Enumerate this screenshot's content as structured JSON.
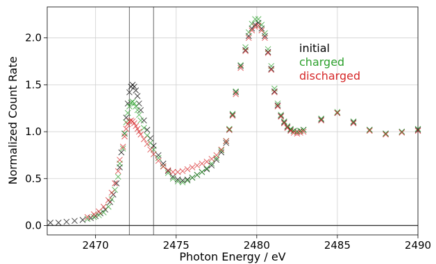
{
  "chart_data": {
    "type": "scatter",
    "title": "",
    "xlabel": "Photon Energy / eV",
    "ylabel": "Normalized Count Rate",
    "xlim": [
      2467,
      2490
    ],
    "ylim": [
      -0.1,
      2.33
    ],
    "xticks": [
      2470,
      2475,
      2480,
      2485,
      2490
    ],
    "yticks": [
      0.0,
      0.5,
      1.0,
      1.5,
      2.0
    ],
    "ytick_labels": [
      "0.0",
      "0.5",
      "1.0",
      "1.5",
      "2.0"
    ],
    "grid": true,
    "marker": "x",
    "legend_position": "upper-right",
    "reference_lines": [
      {
        "orientation": "vertical",
        "x": 2472.1,
        "color": "#808080"
      },
      {
        "orientation": "vertical",
        "x": 2473.6,
        "color": "#808080"
      },
      {
        "orientation": "horizontal",
        "y": 0.0,
        "color": "#333333"
      }
    ],
    "series": [
      {
        "name": "initial",
        "color": "#000000",
        "points": [
          [
            2467.2,
            0.03
          ],
          [
            2467.7,
            0.03
          ],
          [
            2468.2,
            0.04
          ],
          [
            2468.7,
            0.05
          ],
          [
            2469.2,
            0.06
          ],
          [
            2469.7,
            0.08
          ],
          [
            2470.0,
            0.1
          ],
          [
            2470.3,
            0.13
          ],
          [
            2470.6,
            0.17
          ],
          [
            2470.9,
            0.25
          ],
          [
            2471.1,
            0.33
          ],
          [
            2471.3,
            0.45
          ],
          [
            2471.5,
            0.62
          ],
          [
            2471.6,
            0.78
          ],
          [
            2471.8,
            0.98
          ],
          [
            2471.9,
            1.15
          ],
          [
            2472.0,
            1.3
          ],
          [
            2472.1,
            1.42
          ],
          [
            2472.2,
            1.48
          ],
          [
            2472.3,
            1.5
          ],
          [
            2472.4,
            1.48
          ],
          [
            2472.5,
            1.44
          ],
          [
            2472.6,
            1.38
          ],
          [
            2472.7,
            1.3
          ],
          [
            2472.8,
            1.23
          ],
          [
            2473.0,
            1.12
          ],
          [
            2473.2,
            1.02
          ],
          [
            2473.4,
            0.93
          ],
          [
            2473.6,
            0.85
          ],
          [
            2473.9,
            0.75
          ],
          [
            2474.2,
            0.66
          ],
          [
            2474.5,
            0.58
          ],
          [
            2474.8,
            0.52
          ],
          [
            2475.1,
            0.49
          ],
          [
            2475.4,
            0.48
          ],
          [
            2475.7,
            0.49
          ],
          [
            2476.0,
            0.51
          ],
          [
            2476.3,
            0.54
          ],
          [
            2476.6,
            0.57
          ],
          [
            2476.9,
            0.6
          ],
          [
            2477.2,
            0.64
          ],
          [
            2477.5,
            0.7
          ],
          [
            2477.8,
            0.78
          ],
          [
            2478.1,
            0.88
          ],
          [
            2478.3,
            1.02
          ],
          [
            2478.5,
            1.18
          ],
          [
            2478.7,
            1.42
          ],
          [
            2479.0,
            1.7
          ],
          [
            2479.3,
            1.87
          ],
          [
            2479.5,
            2.02
          ],
          [
            2479.7,
            2.1
          ],
          [
            2479.9,
            2.14
          ],
          [
            2480.1,
            2.16
          ],
          [
            2480.3,
            2.1
          ],
          [
            2480.5,
            2.02
          ],
          [
            2480.7,
            1.85
          ],
          [
            2480.9,
            1.67
          ],
          [
            2481.1,
            1.43
          ],
          [
            2481.3,
            1.28
          ],
          [
            2481.5,
            1.17
          ],
          [
            2481.7,
            1.1
          ],
          [
            2481.9,
            1.05
          ],
          [
            2482.1,
            1.02
          ],
          [
            2482.3,
            1.01
          ],
          [
            2482.5,
            1.0
          ],
          [
            2482.7,
            1.01
          ],
          [
            2482.9,
            1.02
          ],
          [
            2484.0,
            1.13
          ],
          [
            2485.0,
            1.2
          ],
          [
            2486.0,
            1.1
          ],
          [
            2487.0,
            1.02
          ],
          [
            2488.0,
            0.98
          ],
          [
            2489.0,
            1.0
          ],
          [
            2490.0,
            1.02
          ]
        ]
      },
      {
        "name": "charged",
        "color": "#2ca02c",
        "points": [
          [
            2469.5,
            0.07
          ],
          [
            2469.9,
            0.09
          ],
          [
            2470.2,
            0.11
          ],
          [
            2470.5,
            0.14
          ],
          [
            2470.8,
            0.2
          ],
          [
            2471.0,
            0.28
          ],
          [
            2471.2,
            0.38
          ],
          [
            2471.4,
            0.52
          ],
          [
            2471.5,
            0.66
          ],
          [
            2471.7,
            0.82
          ],
          [
            2471.8,
            0.98
          ],
          [
            2471.9,
            1.1
          ],
          [
            2472.0,
            1.2
          ],
          [
            2472.1,
            1.27
          ],
          [
            2472.2,
            1.31
          ],
          [
            2472.3,
            1.32
          ],
          [
            2472.4,
            1.3
          ],
          [
            2472.5,
            1.27
          ],
          [
            2472.6,
            1.23
          ],
          [
            2472.7,
            1.18
          ],
          [
            2472.8,
            1.12
          ],
          [
            2473.0,
            1.04
          ],
          [
            2473.2,
            0.96
          ],
          [
            2473.4,
            0.88
          ],
          [
            2473.6,
            0.81
          ],
          [
            2473.9,
            0.72
          ],
          [
            2474.2,
            0.63
          ],
          [
            2474.5,
            0.56
          ],
          [
            2474.8,
            0.5
          ],
          [
            2475.1,
            0.47
          ],
          [
            2475.4,
            0.46
          ],
          [
            2475.7,
            0.48
          ],
          [
            2476.0,
            0.51
          ],
          [
            2476.3,
            0.54
          ],
          [
            2476.6,
            0.57
          ],
          [
            2476.9,
            0.61
          ],
          [
            2477.2,
            0.66
          ],
          [
            2477.5,
            0.72
          ],
          [
            2477.8,
            0.8
          ],
          [
            2478.1,
            0.9
          ],
          [
            2478.3,
            1.03
          ],
          [
            2478.5,
            1.19
          ],
          [
            2478.7,
            1.43
          ],
          [
            2479.0,
            1.71
          ],
          [
            2479.3,
            1.9
          ],
          [
            2479.5,
            2.06
          ],
          [
            2479.7,
            2.15
          ],
          [
            2479.9,
            2.2
          ],
          [
            2480.1,
            2.2
          ],
          [
            2480.3,
            2.14
          ],
          [
            2480.5,
            2.05
          ],
          [
            2480.7,
            1.88
          ],
          [
            2480.9,
            1.7
          ],
          [
            2481.1,
            1.46
          ],
          [
            2481.3,
            1.3
          ],
          [
            2481.5,
            1.18
          ],
          [
            2481.7,
            1.11
          ],
          [
            2481.9,
            1.06
          ],
          [
            2482.1,
            1.03
          ],
          [
            2482.3,
            1.01
          ],
          [
            2482.5,
            1.0
          ],
          [
            2482.7,
            1.01
          ],
          [
            2482.9,
            1.02
          ],
          [
            2484.0,
            1.14
          ],
          [
            2485.0,
            1.21
          ],
          [
            2486.0,
            1.11
          ],
          [
            2487.0,
            1.02
          ],
          [
            2488.0,
            0.98
          ],
          [
            2489.0,
            1.0
          ],
          [
            2490.0,
            1.03
          ]
        ]
      },
      {
        "name": "discharged",
        "color": "#d62728",
        "points": [
          [
            2469.5,
            0.09
          ],
          [
            2469.9,
            0.12
          ],
          [
            2470.2,
            0.15
          ],
          [
            2470.5,
            0.2
          ],
          [
            2470.8,
            0.27
          ],
          [
            2471.0,
            0.35
          ],
          [
            2471.2,
            0.45
          ],
          [
            2471.4,
            0.58
          ],
          [
            2471.5,
            0.7
          ],
          [
            2471.7,
            0.84
          ],
          [
            2471.8,
            0.95
          ],
          [
            2471.9,
            1.03
          ],
          [
            2472.0,
            1.08
          ],
          [
            2472.1,
            1.11
          ],
          [
            2472.2,
            1.12
          ],
          [
            2472.3,
            1.11
          ],
          [
            2472.4,
            1.09
          ],
          [
            2472.5,
            1.06
          ],
          [
            2472.6,
            1.03
          ],
          [
            2472.7,
            1.0
          ],
          [
            2472.8,
            0.97
          ],
          [
            2473.0,
            0.92
          ],
          [
            2473.2,
            0.87
          ],
          [
            2473.4,
            0.81
          ],
          [
            2473.6,
            0.76
          ],
          [
            2473.9,
            0.69
          ],
          [
            2474.2,
            0.63
          ],
          [
            2474.5,
            0.59
          ],
          [
            2474.8,
            0.57
          ],
          [
            2475.1,
            0.57
          ],
          [
            2475.4,
            0.58
          ],
          [
            2475.7,
            0.6
          ],
          [
            2476.0,
            0.62
          ],
          [
            2476.3,
            0.64
          ],
          [
            2476.6,
            0.66
          ],
          [
            2476.9,
            0.68
          ],
          [
            2477.2,
            0.71
          ],
          [
            2477.5,
            0.75
          ],
          [
            2477.8,
            0.81
          ],
          [
            2478.1,
            0.9
          ],
          [
            2478.3,
            1.02
          ],
          [
            2478.5,
            1.17
          ],
          [
            2478.7,
            1.4
          ],
          [
            2479.0,
            1.68
          ],
          [
            2479.3,
            1.86
          ],
          [
            2479.5,
            2.0
          ],
          [
            2479.7,
            2.08
          ],
          [
            2479.9,
            2.12
          ],
          [
            2480.1,
            2.13
          ],
          [
            2480.3,
            2.08
          ],
          [
            2480.5,
            2.0
          ],
          [
            2480.7,
            1.84
          ],
          [
            2480.9,
            1.66
          ],
          [
            2481.1,
            1.42
          ],
          [
            2481.3,
            1.27
          ],
          [
            2481.5,
            1.16
          ],
          [
            2481.7,
            1.09
          ],
          [
            2481.9,
            1.04
          ],
          [
            2482.1,
            1.01
          ],
          [
            2482.3,
            0.99
          ],
          [
            2482.5,
            0.98
          ],
          [
            2482.7,
            0.99
          ],
          [
            2482.9,
            1.0
          ],
          [
            2484.0,
            1.12
          ],
          [
            2485.0,
            1.2
          ],
          [
            2486.0,
            1.09
          ],
          [
            2487.0,
            1.01
          ],
          [
            2488.0,
            0.97
          ],
          [
            2489.0,
            0.99
          ],
          [
            2490.0,
            1.01
          ]
        ]
      }
    ]
  }
}
